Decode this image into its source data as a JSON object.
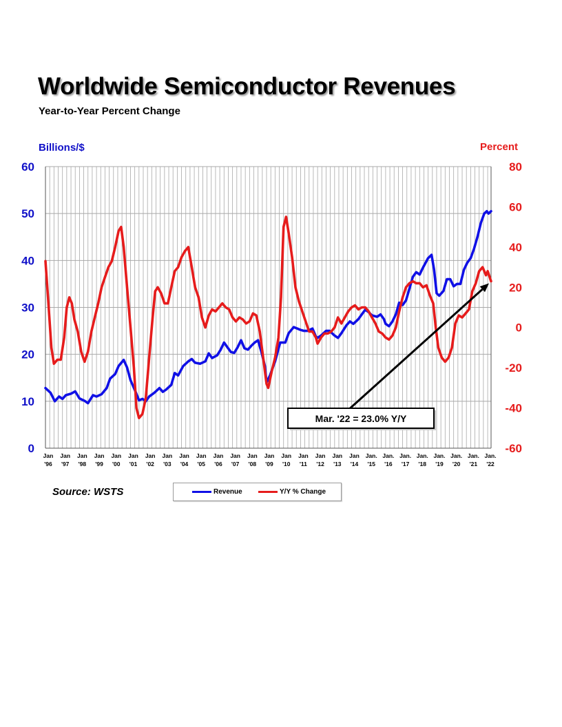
{
  "page": {
    "source": "Source: WSTS"
  },
  "colors": {
    "revenue": "#1010e6",
    "yoy": "#e61c1c",
    "grid": "#a8a8a8",
    "axis": "#555555",
    "left_axis_text": "#1010c8",
    "right_axis_text": "#e61c1c"
  },
  "chart_data": {
    "type": "line",
    "title": "Worldwide Semiconductor Revenues",
    "subtitle": "Year-to-Year Percent Change",
    "ylabel": "Billions/$",
    "y2label": "Percent",
    "ylim": [
      0,
      60
    ],
    "y2lim": [
      -60,
      80
    ],
    "yticks": [
      0,
      10,
      20,
      30,
      40,
      50,
      60
    ],
    "y2ticks": [
      -60,
      -40,
      -20,
      0,
      20,
      40,
      60,
      80
    ],
    "xlim": [
      1996.0,
      2022.2
    ],
    "x_ticks": [
      {
        "x": 1996,
        "top": "Jan",
        "bottom": "'96"
      },
      {
        "x": 1997,
        "top": "Jan",
        "bottom": "'97"
      },
      {
        "x": 1998,
        "top": "Jan",
        "bottom": "'98"
      },
      {
        "x": 1999,
        "top": "Jan",
        "bottom": "'99"
      },
      {
        "x": 2000,
        "top": "Jan",
        "bottom": "'00"
      },
      {
        "x": 2001,
        "top": "Jan",
        "bottom": "'01"
      },
      {
        "x": 2002,
        "top": "Jan",
        "bottom": "'02"
      },
      {
        "x": 2003,
        "top": "Jan",
        "bottom": "'03"
      },
      {
        "x": 2004,
        "top": "Jan",
        "bottom": "'04"
      },
      {
        "x": 2005,
        "top": "Jan",
        "bottom": "'05"
      },
      {
        "x": 2006,
        "top": "Jan",
        "bottom": "'06"
      },
      {
        "x": 2007,
        "top": "Jan",
        "bottom": "'07"
      },
      {
        "x": 2008,
        "top": "Jan",
        "bottom": "'08"
      },
      {
        "x": 2009,
        "top": "Jan",
        "bottom": "'09"
      },
      {
        "x": 2010,
        "top": "Jan",
        "bottom": "'10"
      },
      {
        "x": 2011,
        "top": "Jan",
        "bottom": "'11"
      },
      {
        "x": 2012,
        "top": "Jan",
        "bottom": "'12"
      },
      {
        "x": 2013,
        "top": "Jan",
        "bottom": "'13"
      },
      {
        "x": 2014,
        "top": "Jan",
        "bottom": "'14"
      },
      {
        "x": 2015,
        "top": "Jan.",
        "bottom": "'15"
      },
      {
        "x": 2016,
        "top": "Jan.",
        "bottom": "'16"
      },
      {
        "x": 2017,
        "top": "Jan.",
        "bottom": "'17"
      },
      {
        "x": 2018,
        "top": "Jan.",
        "bottom": "'18"
      },
      {
        "x": 2019,
        "top": "Jan.",
        "bottom": "'19"
      },
      {
        "x": 2020,
        "top": "Jan.",
        "bottom": "'20"
      },
      {
        "x": 2021,
        "top": "Jan.",
        "bottom": "'21"
      },
      {
        "x": 2022,
        "top": "Jan.",
        "bottom": "'22"
      }
    ],
    "series": [
      {
        "name": "Revenue",
        "axis": "left",
        "points": [
          [
            1996.0,
            12.8
          ],
          [
            1996.3,
            11.8
          ],
          [
            1996.55,
            10.0
          ],
          [
            1996.8,
            11.0
          ],
          [
            1997.0,
            10.5
          ],
          [
            1997.2,
            11.3
          ],
          [
            1997.5,
            11.6
          ],
          [
            1997.75,
            12.1
          ],
          [
            1998.0,
            10.6
          ],
          [
            1998.3,
            10.1
          ],
          [
            1998.5,
            9.6
          ],
          [
            1998.8,
            11.3
          ],
          [
            1999.0,
            11.0
          ],
          [
            1999.3,
            11.5
          ],
          [
            1999.6,
            12.8
          ],
          [
            1999.8,
            14.8
          ],
          [
            2000.1,
            15.8
          ],
          [
            2000.3,
            17.5
          ],
          [
            2000.6,
            18.8
          ],
          [
            2000.8,
            17.2
          ],
          [
            2001.0,
            14.5
          ],
          [
            2001.3,
            12.0
          ],
          [
            2001.5,
            10.2
          ],
          [
            2001.7,
            10.5
          ],
          [
            2001.9,
            10.0
          ],
          [
            2002.1,
            11.0
          ],
          [
            2002.4,
            11.8
          ],
          [
            2002.7,
            12.8
          ],
          [
            2002.9,
            12.0
          ],
          [
            2003.1,
            12.5
          ],
          [
            2003.4,
            13.5
          ],
          [
            2003.6,
            16.0
          ],
          [
            2003.8,
            15.5
          ],
          [
            2004.1,
            17.5
          ],
          [
            2004.4,
            18.5
          ],
          [
            2004.6,
            19.0
          ],
          [
            2004.8,
            18.2
          ],
          [
            2005.1,
            18.0
          ],
          [
            2005.4,
            18.5
          ],
          [
            2005.6,
            20.2
          ],
          [
            2005.8,
            19.2
          ],
          [
            2006.1,
            19.8
          ],
          [
            2006.3,
            21.0
          ],
          [
            2006.5,
            22.5
          ],
          [
            2006.7,
            21.5
          ],
          [
            2006.9,
            20.5
          ],
          [
            2007.1,
            20.3
          ],
          [
            2007.3,
            21.5
          ],
          [
            2007.5,
            23.0
          ],
          [
            2007.7,
            21.3
          ],
          [
            2007.9,
            21.0
          ],
          [
            2008.1,
            21.8
          ],
          [
            2008.3,
            22.5
          ],
          [
            2008.5,
            23.0
          ],
          [
            2008.7,
            20.5
          ],
          [
            2008.9,
            17.5
          ],
          [
            2009.0,
            14.0
          ],
          [
            2009.2,
            15.5
          ],
          [
            2009.5,
            18.5
          ],
          [
            2009.8,
            22.5
          ],
          [
            2010.1,
            22.5
          ],
          [
            2010.3,
            24.5
          ],
          [
            2010.6,
            25.8
          ],
          [
            2010.8,
            25.5
          ],
          [
            2011.0,
            25.2
          ],
          [
            2011.2,
            25.0
          ],
          [
            2011.4,
            25.0
          ],
          [
            2011.7,
            25.5
          ],
          [
            2011.9,
            23.8
          ],
          [
            2012.0,
            23.5
          ],
          [
            2012.2,
            24.0
          ],
          [
            2012.5,
            25.0
          ],
          [
            2012.7,
            25.0
          ],
          [
            2013.0,
            24.0
          ],
          [
            2013.2,
            23.5
          ],
          [
            2013.4,
            24.5
          ],
          [
            2013.7,
            26.2
          ],
          [
            2013.9,
            27.0
          ],
          [
            2014.1,
            26.5
          ],
          [
            2014.4,
            27.5
          ],
          [
            2014.6,
            28.5
          ],
          [
            2014.8,
            29.5
          ],
          [
            2015.0,
            29.0
          ],
          [
            2015.2,
            28.3
          ],
          [
            2015.5,
            28.0
          ],
          [
            2015.7,
            28.5
          ],
          [
            2015.9,
            27.5
          ],
          [
            2016.0,
            26.5
          ],
          [
            2016.2,
            26.0
          ],
          [
            2016.4,
            27.0
          ],
          [
            2016.6,
            28.5
          ],
          [
            2016.8,
            31.0
          ],
          [
            2017.0,
            30.5
          ],
          [
            2017.2,
            31.5
          ],
          [
            2017.4,
            34.0
          ],
          [
            2017.6,
            36.5
          ],
          [
            2017.8,
            37.5
          ],
          [
            2018.0,
            37.0
          ],
          [
            2018.2,
            38.5
          ],
          [
            2018.5,
            40.5
          ],
          [
            2018.7,
            41.2
          ],
          [
            2018.85,
            38.0
          ],
          [
            2019.0,
            33.0
          ],
          [
            2019.15,
            32.5
          ],
          [
            2019.4,
            33.5
          ],
          [
            2019.6,
            36.0
          ],
          [
            2019.8,
            36.0
          ],
          [
            2020.0,
            34.5
          ],
          [
            2020.2,
            35.0
          ],
          [
            2020.4,
            35.0
          ],
          [
            2020.6,
            38.0
          ],
          [
            2020.8,
            39.5
          ],
          [
            2021.0,
            40.5
          ],
          [
            2021.2,
            42.5
          ],
          [
            2021.4,
            45.0
          ],
          [
            2021.6,
            48.0
          ],
          [
            2021.8,
            50.0
          ],
          [
            2021.95,
            50.5
          ],
          [
            2022.05,
            50.0
          ],
          [
            2022.2,
            50.5
          ]
        ]
      },
      {
        "name": "Y/Y % Change",
        "axis": "right",
        "points": [
          [
            1996.0,
            33
          ],
          [
            1996.15,
            15
          ],
          [
            1996.35,
            -10
          ],
          [
            1996.5,
            -18
          ],
          [
            1996.7,
            -16
          ],
          [
            1996.9,
            -16
          ],
          [
            1997.1,
            -5
          ],
          [
            1997.25,
            10
          ],
          [
            1997.4,
            15
          ],
          [
            1997.55,
            12
          ],
          [
            1997.7,
            4
          ],
          [
            1997.9,
            -2
          ],
          [
            1998.1,
            -12
          ],
          [
            1998.3,
            -17
          ],
          [
            1998.5,
            -12
          ],
          [
            1998.7,
            -2
          ],
          [
            1998.9,
            5
          ],
          [
            1999.1,
            12
          ],
          [
            1999.3,
            20
          ],
          [
            1999.5,
            25
          ],
          [
            1999.7,
            30
          ],
          [
            1999.9,
            33
          ],
          [
            2000.1,
            40
          ],
          [
            2000.3,
            48
          ],
          [
            2000.45,
            50
          ],
          [
            2000.6,
            40
          ],
          [
            2000.8,
            20
          ],
          [
            2001.0,
            0
          ],
          [
            2001.2,
            -20
          ],
          [
            2001.35,
            -40
          ],
          [
            2001.5,
            -45
          ],
          [
            2001.7,
            -43
          ],
          [
            2001.9,
            -35
          ],
          [
            2002.1,
            -15
          ],
          [
            2002.3,
            5
          ],
          [
            2002.45,
            18
          ],
          [
            2002.6,
            20
          ],
          [
            2002.8,
            17
          ],
          [
            2003.0,
            12
          ],
          [
            2003.2,
            12
          ],
          [
            2003.4,
            20
          ],
          [
            2003.6,
            28
          ],
          [
            2003.8,
            30
          ],
          [
            2004.0,
            35
          ],
          [
            2004.2,
            38
          ],
          [
            2004.4,
            40
          ],
          [
            2004.6,
            30
          ],
          [
            2004.8,
            20
          ],
          [
            2005.0,
            15
          ],
          [
            2005.2,
            5
          ],
          [
            2005.4,
            0
          ],
          [
            2005.6,
            6
          ],
          [
            2005.8,
            9
          ],
          [
            2006.0,
            8
          ],
          [
            2006.2,
            10
          ],
          [
            2006.4,
            12
          ],
          [
            2006.6,
            10
          ],
          [
            2006.8,
            9
          ],
          [
            2007.0,
            5
          ],
          [
            2007.2,
            3
          ],
          [
            2007.4,
            5
          ],
          [
            2007.6,
            4
          ],
          [
            2007.8,
            2
          ],
          [
            2008.0,
            3
          ],
          [
            2008.2,
            7
          ],
          [
            2008.4,
            6
          ],
          [
            2008.6,
            -2
          ],
          [
            2008.8,
            -15
          ],
          [
            2009.0,
            -28
          ],
          [
            2009.1,
            -30
          ],
          [
            2009.3,
            -22
          ],
          [
            2009.5,
            -15
          ],
          [
            2009.7,
            -5
          ],
          [
            2009.85,
            15
          ],
          [
            2010.0,
            50
          ],
          [
            2010.15,
            55
          ],
          [
            2010.3,
            47
          ],
          [
            2010.5,
            35
          ],
          [
            2010.7,
            20
          ],
          [
            2010.9,
            13
          ],
          [
            2011.1,
            8
          ],
          [
            2011.3,
            3
          ],
          [
            2011.5,
            -2
          ],
          [
            2011.7,
            -2
          ],
          [
            2011.9,
            -5
          ],
          [
            2012.0,
            -8
          ],
          [
            2012.2,
            -5
          ],
          [
            2012.4,
            -3
          ],
          [
            2012.6,
            -3
          ],
          [
            2012.8,
            -2
          ],
          [
            2013.0,
            0
          ],
          [
            2013.2,
            5
          ],
          [
            2013.4,
            2
          ],
          [
            2013.6,
            5
          ],
          [
            2013.8,
            8
          ],
          [
            2014.0,
            10
          ],
          [
            2014.2,
            11
          ],
          [
            2014.4,
            9
          ],
          [
            2014.6,
            10
          ],
          [
            2014.8,
            10
          ],
          [
            2015.0,
            8
          ],
          [
            2015.2,
            5
          ],
          [
            2015.4,
            2
          ],
          [
            2015.6,
            -2
          ],
          [
            2015.8,
            -3
          ],
          [
            2016.0,
            -5
          ],
          [
            2016.2,
            -6
          ],
          [
            2016.4,
            -4
          ],
          [
            2016.6,
            0
          ],
          [
            2016.8,
            8
          ],
          [
            2017.0,
            15
          ],
          [
            2017.2,
            20
          ],
          [
            2017.4,
            22
          ],
          [
            2017.6,
            23
          ],
          [
            2017.8,
            22
          ],
          [
            2018.0,
            22
          ],
          [
            2018.2,
            20
          ],
          [
            2018.4,
            21
          ],
          [
            2018.6,
            16
          ],
          [
            2018.8,
            12
          ],
          [
            2018.95,
            0
          ],
          [
            2019.1,
            -10
          ],
          [
            2019.3,
            -15
          ],
          [
            2019.5,
            -17
          ],
          [
            2019.7,
            -15
          ],
          [
            2019.9,
            -10
          ],
          [
            2020.1,
            2
          ],
          [
            2020.3,
            6
          ],
          [
            2020.5,
            5
          ],
          [
            2020.7,
            7
          ],
          [
            2020.9,
            9
          ],
          [
            2021.1,
            18
          ],
          [
            2021.3,
            22
          ],
          [
            2021.5,
            28
          ],
          [
            2021.7,
            30
          ],
          [
            2021.9,
            26
          ],
          [
            2022.0,
            28
          ],
          [
            2022.2,
            23
          ]
        ]
      }
    ],
    "legend": [
      "Revenue",
      "Y/Y % Change"
    ],
    "annotation": {
      "text": "Mar. '22 = 23.0% Y/Y",
      "x": 2022.2,
      "y2": 23.0
    }
  }
}
